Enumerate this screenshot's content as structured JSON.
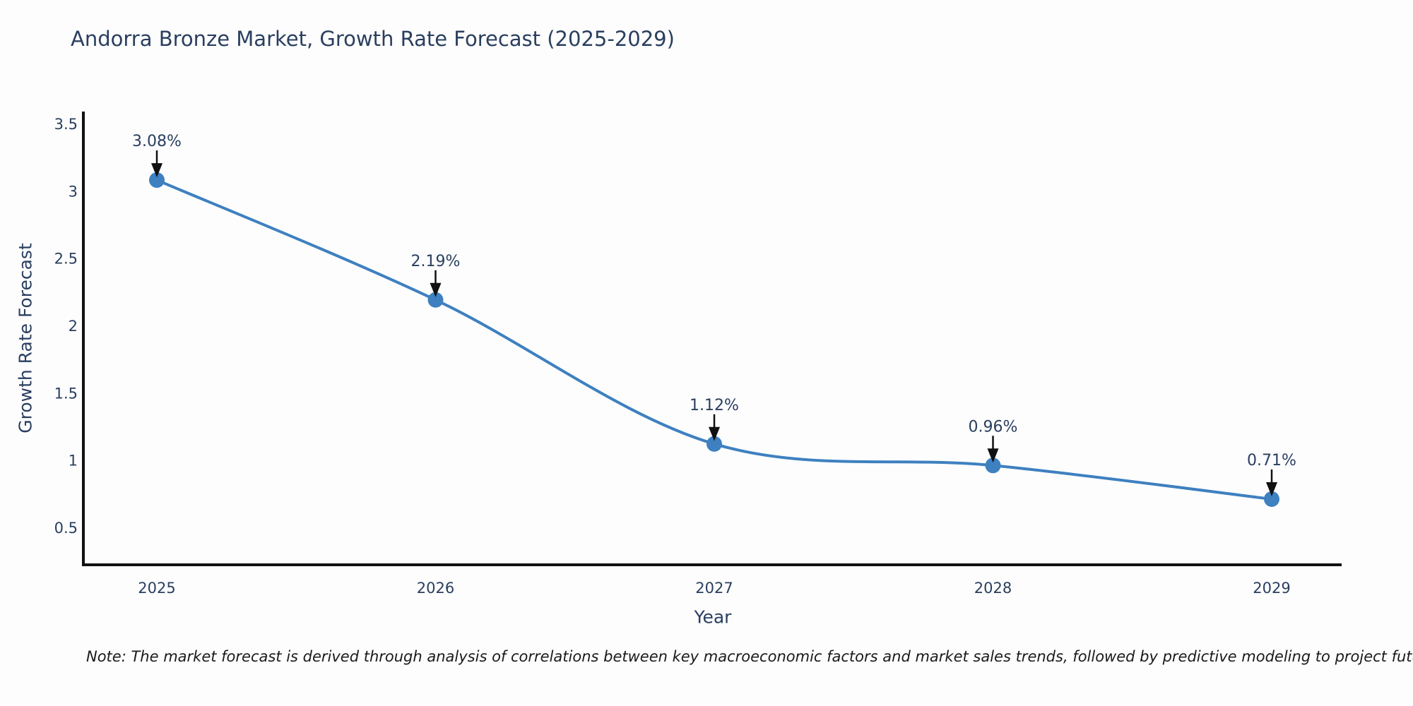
{
  "figure": {
    "note": "Note: The market forecast is derived through analysis of correlations between key macroeconomic factors and market sales trends, followed by predictive modeling to project future sales"
  },
  "chart_data": {
    "type": "line",
    "title": "Andorra Bronze Market, Growth Rate Forecast (2025-2029)",
    "xlabel": "Year",
    "ylabel": "Growth Rate Forecast",
    "x": [
      2025,
      2026,
      2027,
      2028,
      2029
    ],
    "series": [
      {
        "name": "Growth Rate Forecast",
        "values": [
          3.08,
          2.19,
          1.12,
          0.96,
          0.71
        ]
      }
    ],
    "point_labels": [
      "3.08%",
      "2.19%",
      "1.12%",
      "0.96%",
      "0.71%"
    ],
    "xticks": [
      "2025",
      "2026",
      "2027",
      "2028",
      "2029"
    ],
    "yticks": [
      3.5,
      3,
      2.5,
      2,
      1.5,
      1,
      0.5
    ],
    "ylim": [
      0.22,
      3.59
    ],
    "line_shape": "spline",
    "grid": false,
    "legend": "none",
    "annotation_style": "label-with-down-arrow",
    "colors": {
      "line": "#3e80c0",
      "marker": "#3e80c0",
      "axis": "#111111",
      "text": "#2a3f5f",
      "arrow": "#111111",
      "background": "#fdfdfd"
    }
  }
}
